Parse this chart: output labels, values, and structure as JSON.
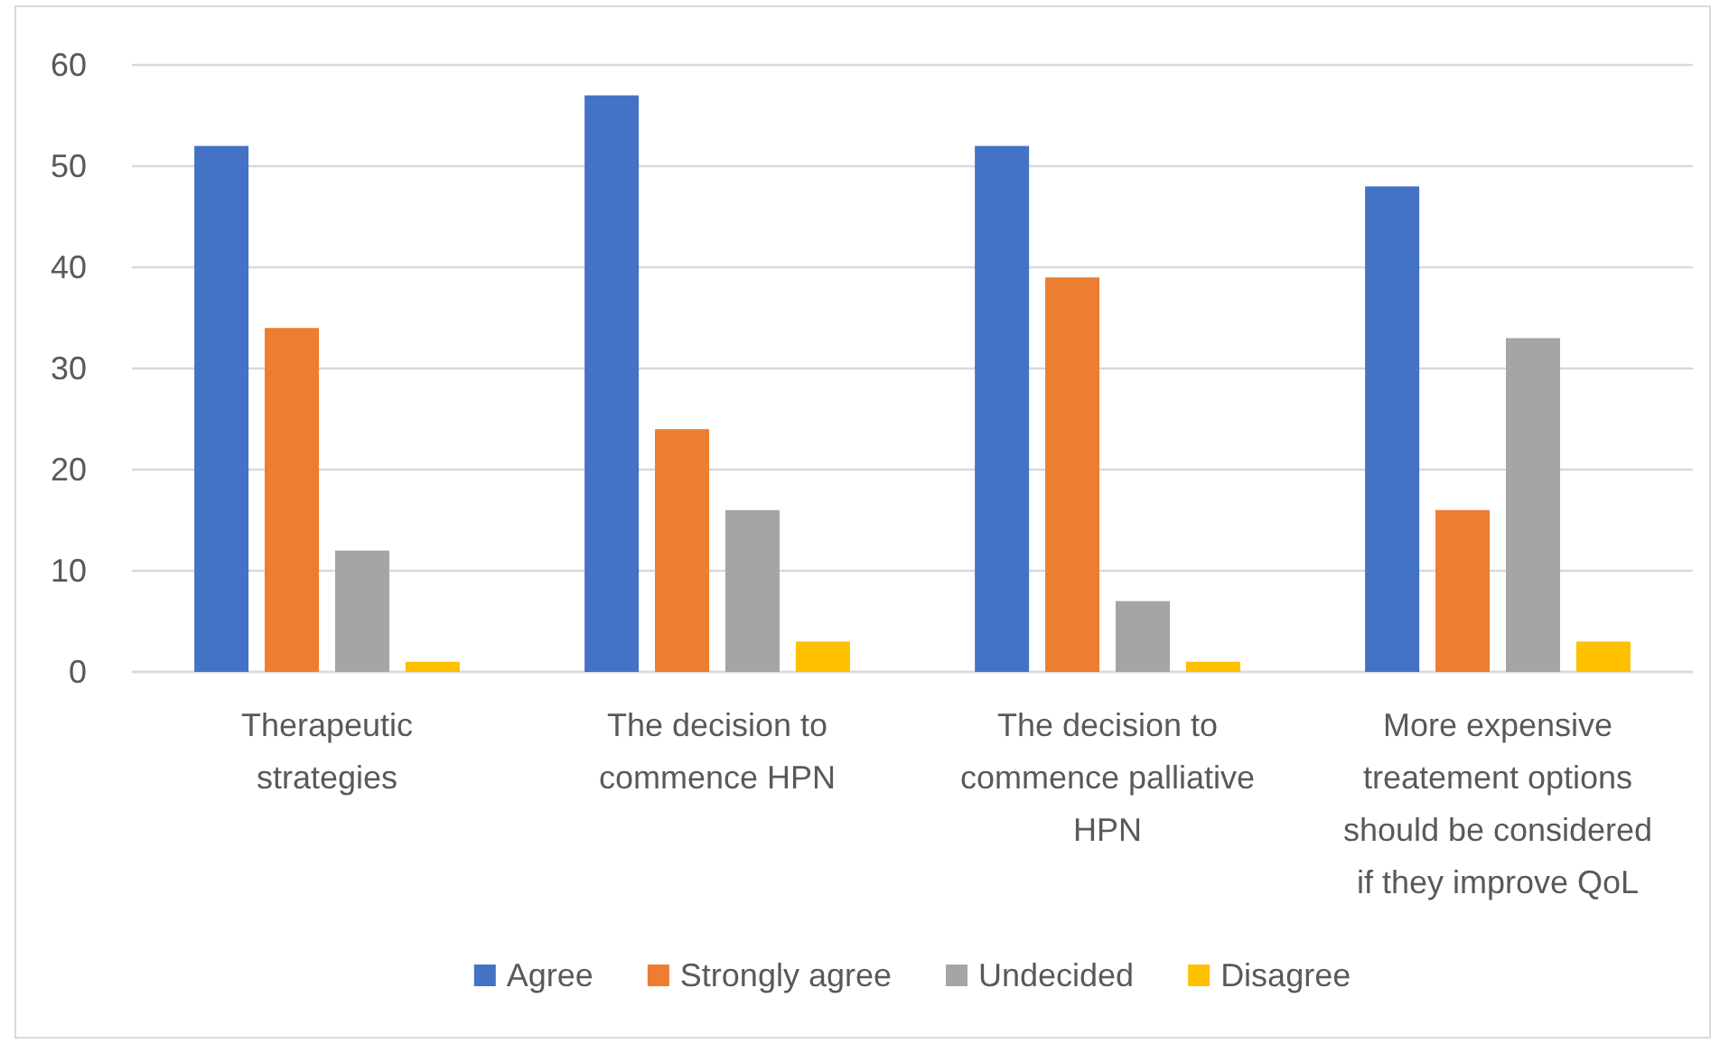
{
  "chart_data": {
    "type": "bar",
    "categories": [
      "Therapeutic strategies",
      "The decision to commence HPN",
      "The decision to commence palliative HPN",
      "More expensive treatement options should be considered if they improve QoL"
    ],
    "series": [
      {
        "name": "Agree",
        "color": "#4472c4",
        "values": [
          52,
          57,
          52,
          48
        ]
      },
      {
        "name": "Strongly agree",
        "color": "#ed7d31",
        "values": [
          34,
          24,
          39,
          16
        ]
      },
      {
        "name": "Undecided",
        "color": "#a5a5a5",
        "values": [
          12,
          16,
          7,
          33
        ]
      },
      {
        "name": "Disagree",
        "color": "#ffc000",
        "values": [
          1,
          3,
          1,
          3
        ]
      }
    ],
    "ylim": [
      0,
      60
    ],
    "yticks": [
      0,
      10,
      20,
      30,
      40,
      50,
      60
    ],
    "grid": "y",
    "legend": "bottom"
  }
}
